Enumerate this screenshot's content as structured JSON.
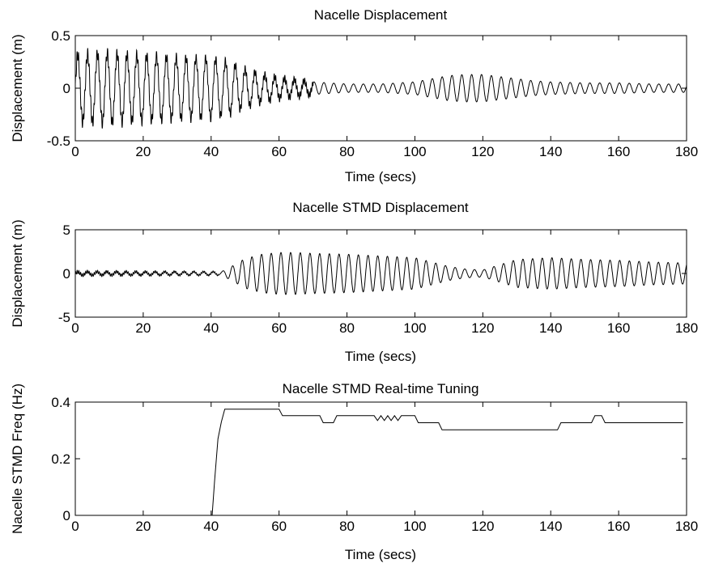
{
  "chart_data": [
    {
      "type": "line",
      "title": "Nacelle Displacement",
      "xlabel": "Time (secs)",
      "ylabel": "Displacement (m)",
      "xlim": [
        0,
        180
      ],
      "ylim": [
        -0.5,
        0.5
      ],
      "xticks": [
        0,
        20,
        40,
        60,
        80,
        100,
        120,
        140,
        160,
        180
      ],
      "yticks": [
        -0.5,
        0,
        0.5
      ],
      "ytick_labels": [
        "-0.5",
        "0",
        "0.5"
      ],
      "grid": false,
      "series": [
        {
          "envelope": [
            [
              0,
              0.32
            ],
            [
              10,
              0.33
            ],
            [
              20,
              0.31
            ],
            [
              30,
              0.29
            ],
            [
              40,
              0.28
            ],
            [
              45,
              0.25
            ],
            [
              50,
              0.18
            ],
            [
              55,
              0.13
            ],
            [
              60,
              0.1
            ],
            [
              65,
              0.08
            ],
            [
              70,
              0.06
            ],
            [
              80,
              0.04
            ],
            [
              90,
              0.04
            ],
            [
              100,
              0.06
            ],
            [
              105,
              0.09
            ],
            [
              110,
              0.12
            ],
            [
              115,
              0.13
            ],
            [
              120,
              0.13
            ],
            [
              125,
              0.11
            ],
            [
              130,
              0.09
            ],
            [
              135,
              0.07
            ],
            [
              140,
              0.06
            ],
            [
              150,
              0.05
            ],
            [
              160,
              0.05
            ],
            [
              170,
              0.04
            ],
            [
              180,
              0.04
            ]
          ],
          "period_s": 2.9,
          "ripple_amplitude": 0.06,
          "ripple_period_s": 0.45,
          "ripple_end_s": 70
        }
      ]
    },
    {
      "type": "line",
      "title": "Nacelle STMD Displacement",
      "xlabel": "Time (secs)",
      "ylabel": "Displacement (m)",
      "xlim": [
        0,
        180
      ],
      "ylim": [
        -5,
        5
      ],
      "xticks": [
        0,
        20,
        40,
        60,
        80,
        100,
        120,
        140,
        160,
        180
      ],
      "yticks": [
        -5,
        0,
        5
      ],
      "ytick_labels": [
        "-5",
        "0",
        "5"
      ],
      "grid": false,
      "series": [
        {
          "envelope": [
            [
              0,
              0.2
            ],
            [
              20,
              0.2
            ],
            [
              40,
              0.2
            ],
            [
              43,
              0.2
            ],
            [
              46,
              0.8
            ],
            [
              50,
              1.7
            ],
            [
              55,
              2.2
            ],
            [
              60,
              2.4
            ],
            [
              65,
              2.4
            ],
            [
              70,
              2.3
            ],
            [
              80,
              2.2
            ],
            [
              90,
              2.0
            ],
            [
              100,
              1.8
            ],
            [
              105,
              1.3
            ],
            [
              110,
              0.8
            ],
            [
              115,
              0.5
            ],
            [
              120,
              0.4
            ],
            [
              125,
              1.0
            ],
            [
              130,
              1.6
            ],
            [
              140,
              1.8
            ],
            [
              150,
              1.6
            ],
            [
              160,
              1.5
            ],
            [
              170,
              1.3
            ],
            [
              180,
              1.2
            ]
          ],
          "period_s": 2.85,
          "ripple_amplitude": 0.18,
          "ripple_period_s": 0.5,
          "ripple_end_s": 42
        }
      ]
    },
    {
      "type": "line",
      "title": "Nacelle STMD Real-time Tuning",
      "xlabel": "Time (secs)",
      "ylabel": "Nacelle STMD Freq (Hz)",
      "xlim": [
        0,
        180
      ],
      "ylim": [
        0,
        0.4
      ],
      "xticks": [
        0,
        20,
        40,
        60,
        80,
        100,
        120,
        140,
        160,
        180
      ],
      "yticks": [
        0,
        0.2,
        0.4
      ],
      "ytick_labels": [
        "0",
        "0.2",
        "0.4"
      ],
      "grid": false,
      "series": [
        {
          "points": [
            [
              40.3,
              0.0
            ],
            [
              41,
              0.12
            ],
            [
              42,
              0.27
            ],
            [
              43,
              0.33
            ],
            [
              44,
              0.375
            ],
            [
              60,
              0.375
            ],
            [
              61,
              0.352
            ],
            [
              72,
              0.352
            ],
            [
              73,
              0.327
            ],
            [
              76,
              0.327
            ],
            [
              77,
              0.352
            ],
            [
              88,
              0.352
            ],
            [
              89,
              0.335
            ],
            [
              90,
              0.352
            ],
            [
              91,
              0.335
            ],
            [
              92,
              0.352
            ],
            [
              93,
              0.335
            ],
            [
              94,
              0.352
            ],
            [
              95,
              0.335
            ],
            [
              96,
              0.352
            ],
            [
              100,
              0.352
            ],
            [
              101,
              0.327
            ],
            [
              107,
              0.327
            ],
            [
              108,
              0.302
            ],
            [
              142,
              0.302
            ],
            [
              143,
              0.327
            ],
            [
              152,
              0.327
            ],
            [
              153,
              0.352
            ],
            [
              155,
              0.352
            ],
            [
              156,
              0.327
            ],
            [
              179,
              0.327
            ]
          ]
        }
      ]
    }
  ]
}
